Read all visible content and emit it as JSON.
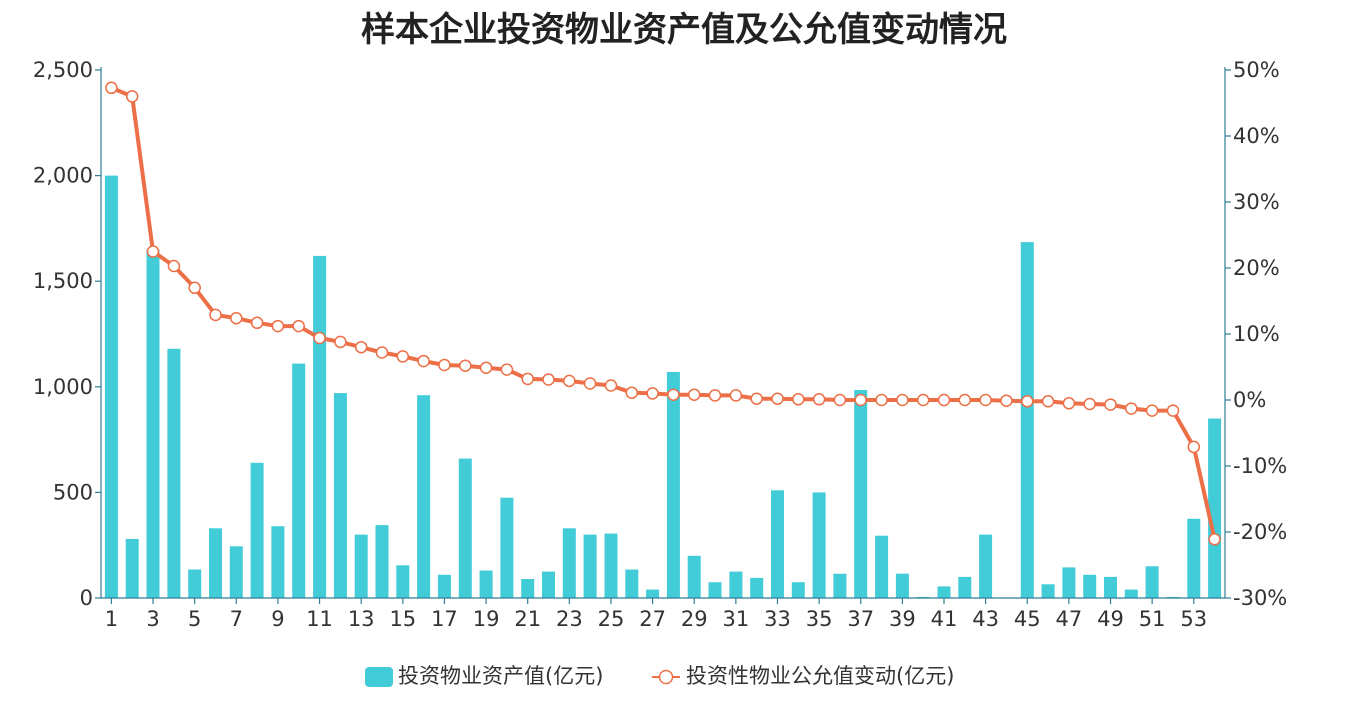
{
  "chart_data": {
    "type": "bar+line",
    "title": "样本企业投资物业资产值及公允值变动情况",
    "categories": [
      1,
      2,
      3,
      4,
      5,
      6,
      7,
      8,
      9,
      10,
      11,
      12,
      13,
      14,
      15,
      16,
      17,
      18,
      19,
      20,
      21,
      22,
      23,
      24,
      25,
      26,
      27,
      28,
      29,
      30,
      31,
      32,
      33,
      34,
      35,
      36,
      37,
      38,
      39,
      40,
      41,
      42,
      43,
      44,
      45,
      46,
      47,
      48,
      49,
      50,
      51,
      52,
      53,
      54
    ],
    "x_tick_labels": [
      "1",
      "3",
      "5",
      "7",
      "9",
      "11",
      "13",
      "15",
      "17",
      "19",
      "21",
      "23",
      "25",
      "27",
      "29",
      "31",
      "33",
      "35",
      "37",
      "39",
      "41",
      "43",
      "45",
      "47",
      "49",
      "51",
      "53"
    ],
    "y_left": {
      "ylim": [
        0,
        2500
      ],
      "ticks": [
        0,
        500,
        1000,
        1500,
        2000,
        2500
      ],
      "tick_labels": [
        "0",
        "500",
        "1,000",
        "1,500",
        "2,000",
        "2,500"
      ]
    },
    "y_right": {
      "ylim": [
        -30,
        50
      ],
      "ticks": [
        -30,
        -20,
        -10,
        0,
        10,
        20,
        30,
        40,
        50
      ],
      "tick_labels": [
        "-30%",
        "-20%",
        "-10%",
        "0%",
        "10%",
        "20%",
        "30%",
        "40%",
        "50%"
      ]
    },
    "series": [
      {
        "name": "投资物业资产值(亿元)",
        "kind": "bar",
        "axis": "left",
        "color": "#42CCD8",
        "values": [
          2000,
          280,
          1650,
          1180,
          135,
          330,
          245,
          640,
          340,
          1110,
          1620,
          970,
          300,
          345,
          155,
          960,
          110,
          660,
          130,
          475,
          90,
          125,
          330,
          300,
          305,
          135,
          40,
          1070,
          200,
          75,
          125,
          95,
          510,
          75,
          500,
          115,
          985,
          295,
          115,
          5,
          55,
          100,
          300,
          0,
          1685,
          65,
          145,
          110,
          100,
          40,
          150,
          5,
          375,
          850
        ]
      },
      {
        "name": "投资性物业公允值变动(亿元)",
        "kind": "line",
        "axis": "right",
        "color": "#EC6F47",
        "values": [
          47.3,
          46,
          22.5,
          20.3,
          17,
          12.9,
          12.4,
          11.7,
          11.2,
          11.2,
          9.4,
          8.8,
          8,
          7.2,
          6.6,
          5.9,
          5.3,
          5.2,
          4.9,
          4.6,
          3.2,
          3.1,
          2.9,
          2.5,
          2.2,
          1.1,
          1,
          0.8,
          0.8,
          0.7,
          0.7,
          0.2,
          0.2,
          0.1,
          0.1,
          0,
          0,
          0,
          0,
          0,
          0,
          0,
          0,
          -0.1,
          -0.2,
          -0.2,
          -0.5,
          -0.6,
          -0.7,
          -1.3,
          -1.6,
          -1.6,
          -7.1,
          -21.1
        ]
      }
    ],
    "legend_position": "bottom"
  }
}
